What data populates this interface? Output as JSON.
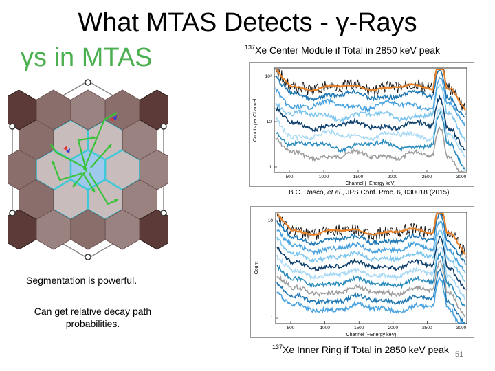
{
  "slide": {
    "title": "What MTAS Detects - γ-Rays",
    "subtitle": "γs in MTAS",
    "caption_top": {
      "sup": "137",
      "text": "Xe Center Module if Total in 2850 keV peak"
    },
    "caption_bottom": {
      "sup": "137",
      "text": "Xe Inner Ring if Total in 2850 keV peak"
    },
    "reference": {
      "pre": "B.C. Rasco, ",
      "italic": "et al.",
      "post": ", JPS Conf. Proc. 6, 030018 (2015)"
    },
    "note1": "Segmentation is powerful.",
    "note2": "Can get relative decay path probabilities.",
    "page_number": "51"
  },
  "plot_top": {
    "ylabel": "Counts per Channel",
    "xlabel": "Channel (~Energy keV)",
    "yticks": [
      "10²",
      "10",
      "1"
    ],
    "xticks": [
      "500",
      "1000",
      "1500",
      "2000",
      "2500",
      "3000"
    ]
  },
  "plot_bottom": {
    "ylabel": "Count",
    "xlabel": "Channel (~Energy keV)",
    "yticks": [
      "10",
      "1"
    ],
    "xticks": [
      "500",
      "1000",
      "1500",
      "2000",
      "2500",
      "3000"
    ]
  },
  "colors": {
    "subtitle": "#4caf50",
    "hex_dark": "#5c3a38",
    "hex_mid": "#8a6e6c",
    "hex_light": "#c8bcbc",
    "hex_outline": "#3fc8d8",
    "arrow": "#39c23a",
    "series_black": "#111111",
    "series_orange": "#e8822a",
    "series_blue": [
      "#1f78b4",
      "#4aa3df",
      "#7fc6ee",
      "#0d3e6b",
      "#a9d9f5",
      "#2b8cbe",
      "#9e9e9e"
    ]
  }
}
